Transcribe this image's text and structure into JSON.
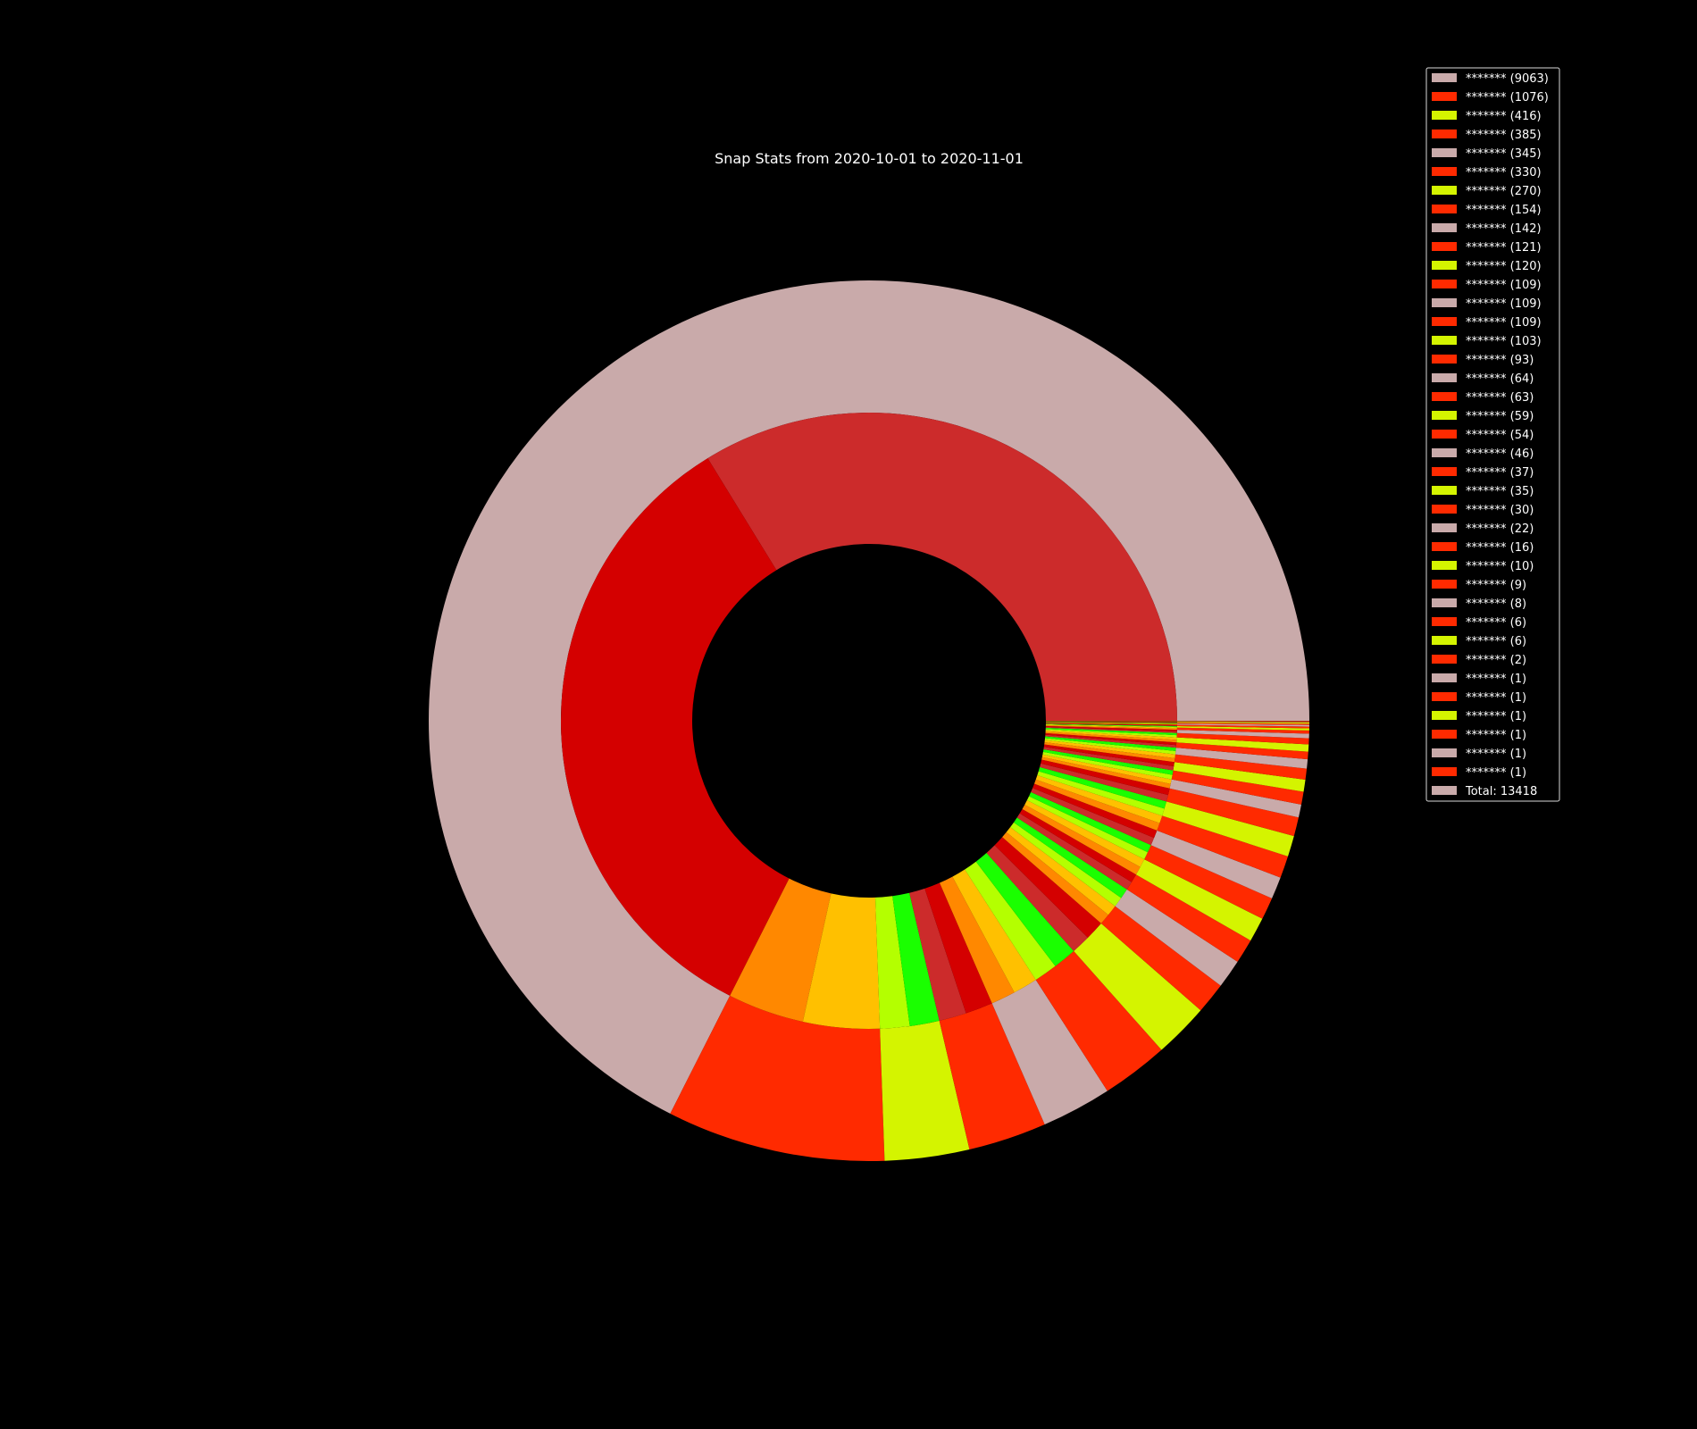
{
  "chart_data": {
    "type": "pie",
    "title": "Snap Stats from 2020-10-01 to 2020-11-01",
    "total_label": "Total: 13418",
    "outer_ring": [
      {
        "label": "******* (9063)",
        "value": 9063,
        "color": "#c9aaaa"
      },
      {
        "label": "******* (1076)",
        "value": 1076,
        "color": "#ff2a00"
      },
      {
        "label": "******* (416)",
        "value": 416,
        "color": "#d4f400"
      },
      {
        "label": "******* (385)",
        "value": 385,
        "color": "#ff2a00"
      },
      {
        "label": "******* (345)",
        "value": 345,
        "color": "#c9aaaa"
      },
      {
        "label": "******* (330)",
        "value": 330,
        "color": "#ff2a00"
      },
      {
        "label": "******* (270)",
        "value": 270,
        "color": "#d4f400"
      },
      {
        "label": "******* (154)",
        "value": 154,
        "color": "#ff2a00"
      },
      {
        "label": "******* (142)",
        "value": 142,
        "color": "#c9aaaa"
      },
      {
        "label": "******* (121)",
        "value": 121,
        "color": "#ff2a00"
      },
      {
        "label": "******* (120)",
        "value": 120,
        "color": "#d4f400"
      },
      {
        "label": "******* (109)",
        "value": 109,
        "color": "#ff2a00"
      },
      {
        "label": "******* (109)",
        "value": 109,
        "color": "#c9aaaa"
      },
      {
        "label": "******* (109)",
        "value": 109,
        "color": "#ff2a00"
      },
      {
        "label": "******* (103)",
        "value": 103,
        "color": "#d4f400"
      },
      {
        "label": "******* (93)",
        "value": 93,
        "color": "#ff2a00"
      },
      {
        "label": "******* (64)",
        "value": 64,
        "color": "#c9aaaa"
      },
      {
        "label": "******* (63)",
        "value": 63,
        "color": "#ff2a00"
      },
      {
        "label": "******* (59)",
        "value": 59,
        "color": "#d4f400"
      },
      {
        "label": "******* (54)",
        "value": 54,
        "color": "#ff2a00"
      },
      {
        "label": "******* (46)",
        "value": 46,
        "color": "#c9aaaa"
      },
      {
        "label": "******* (37)",
        "value": 37,
        "color": "#ff2a00"
      },
      {
        "label": "******* (35)",
        "value": 35,
        "color": "#d4f400"
      },
      {
        "label": "******* (30)",
        "value": 30,
        "color": "#ff2a00"
      },
      {
        "label": "******* (22)",
        "value": 22,
        "color": "#c9aaaa"
      },
      {
        "label": "******* (16)",
        "value": 16,
        "color": "#ff2a00"
      },
      {
        "label": "******* (10)",
        "value": 10,
        "color": "#d4f400"
      },
      {
        "label": "******* (9)",
        "value": 9,
        "color": "#ff2a00"
      },
      {
        "label": "******* (8)",
        "value": 8,
        "color": "#c9aaaa"
      },
      {
        "label": "******* (6)",
        "value": 6,
        "color": "#ff2a00"
      },
      {
        "label": "******* (6)",
        "value": 6,
        "color": "#d4f400"
      },
      {
        "label": "******* (2)",
        "value": 2,
        "color": "#ff2a00"
      },
      {
        "label": "******* (1)",
        "value": 1,
        "color": "#c9aaaa"
      },
      {
        "label": "******* (1)",
        "value": 1,
        "color": "#ff2a00"
      },
      {
        "label": "******* (1)",
        "value": 1,
        "color": "#d4f400"
      },
      {
        "label": "******* (1)",
        "value": 1,
        "color": "#ff2a00"
      },
      {
        "label": "******* (1)",
        "value": 1,
        "color": "#c9aaaa"
      },
      {
        "label": "******* (1)",
        "value": 1,
        "color": "#ff2a00"
      }
    ],
    "inner_ring_colors": [
      "#cc2b2b",
      "#d40000",
      "#ff8800",
      "#ffc000",
      "#b4ff00",
      "#1aff00"
    ],
    "legend_placement": "top-right",
    "grid": false
  }
}
